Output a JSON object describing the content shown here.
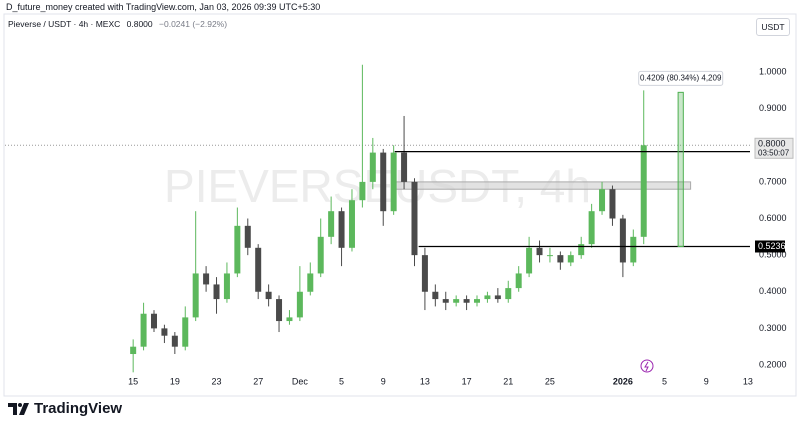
{
  "header": {
    "credit": "D_future_money created with TradingView.com, Jan 03, 2026 09:39 UTC+5:30",
    "symbol": "Pieverse / USDT · 4h · MEXC",
    "price": "0.8000",
    "change": "−0.0241 (−2.92%)",
    "currency": "USDT"
  },
  "footer": {
    "brand": "TradingView"
  },
  "chart_data": {
    "type": "candlestick",
    "watermark": "PIEVERSEUSDT, 4h",
    "x": [
      0,
      1,
      2,
      3,
      4,
      5,
      6,
      7,
      8,
      9,
      10,
      11,
      12,
      13,
      14,
      15,
      16,
      17,
      18,
      19,
      20,
      21,
      22,
      23,
      24,
      25,
      26,
      27,
      28,
      29,
      30,
      31,
      32,
      33,
      34,
      35,
      36,
      37,
      38,
      39,
      40,
      41,
      42,
      43,
      44,
      45,
      46,
      47,
      48,
      49
    ],
    "open": [
      0.23,
      0.25,
      0.34,
      0.3,
      0.28,
      0.25,
      0.33,
      0.45,
      0.42,
      0.38,
      0.45,
      0.58,
      0.52,
      0.4,
      0.38,
      0.32,
      0.33,
      0.4,
      0.45,
      0.55,
      0.62,
      0.52,
      0.65,
      0.7,
      0.78,
      0.62,
      0.78,
      0.7,
      0.5,
      0.4,
      0.38,
      0.37,
      0.38,
      0.37,
      0.38,
      0.39,
      0.38,
      0.41,
      0.45,
      0.52,
      0.5,
      0.5,
      0.48,
      0.5,
      0.53,
      0.62,
      0.68,
      0.6,
      0.48,
      0.55
    ],
    "high": [
      0.27,
      0.37,
      0.35,
      0.31,
      0.29,
      0.36,
      0.62,
      0.47,
      0.44,
      0.48,
      0.63,
      0.6,
      0.53,
      0.42,
      0.39,
      0.35,
      0.47,
      0.48,
      0.6,
      0.66,
      0.63,
      0.68,
      1.02,
      0.82,
      0.79,
      0.8,
      0.88,
      0.71,
      0.52,
      0.42,
      0.4,
      0.39,
      0.39,
      0.39,
      0.4,
      0.41,
      0.43,
      0.47,
      0.55,
      0.54,
      0.52,
      0.51,
      0.51,
      0.55,
      0.64,
      0.7,
      0.69,
      0.61,
      0.57,
      0.95
    ],
    "low": [
      0.18,
      0.24,
      0.29,
      0.26,
      0.23,
      0.24,
      0.32,
      0.4,
      0.34,
      0.37,
      0.44,
      0.5,
      0.38,
      0.36,
      0.29,
      0.31,
      0.32,
      0.39,
      0.44,
      0.53,
      0.47,
      0.51,
      0.63,
      0.68,
      0.58,
      0.61,
      0.68,
      0.47,
      0.35,
      0.36,
      0.35,
      0.36,
      0.35,
      0.36,
      0.37,
      0.37,
      0.37,
      0.4,
      0.44,
      0.48,
      0.48,
      0.46,
      0.47,
      0.49,
      0.52,
      0.61,
      0.58,
      0.44,
      0.47,
      0.53
    ],
    "close": [
      0.25,
      0.34,
      0.3,
      0.28,
      0.25,
      0.33,
      0.45,
      0.42,
      0.38,
      0.45,
      0.58,
      0.52,
      0.4,
      0.38,
      0.32,
      0.33,
      0.4,
      0.45,
      0.55,
      0.62,
      0.52,
      0.65,
      0.7,
      0.78,
      0.62,
      0.78,
      0.7,
      0.5,
      0.4,
      0.38,
      0.37,
      0.38,
      0.37,
      0.38,
      0.39,
      0.38,
      0.41,
      0.45,
      0.52,
      0.5,
      0.5,
      0.48,
      0.5,
      0.53,
      0.62,
      0.68,
      0.6,
      0.48,
      0.55,
      0.8
    ],
    "up_color": "#5cb85c",
    "down_color": "#4a4a4a",
    "xlim": [
      -12.3,
      59.2
    ],
    "ylim": [
      0.1727,
      1.1557
    ],
    "xticks": [
      {
        "value": 0,
        "label": "15"
      },
      {
        "value": 4,
        "label": "19"
      },
      {
        "value": 8,
        "label": "23"
      },
      {
        "value": 12,
        "label": "27"
      },
      {
        "value": 16,
        "label": "Dec"
      },
      {
        "value": 20,
        "label": "5"
      },
      {
        "value": 24,
        "label": "9"
      },
      {
        "value": 28,
        "label": "13"
      },
      {
        "value": 32,
        "label": "17"
      },
      {
        "value": 36,
        "label": "21"
      },
      {
        "value": 40,
        "label": "25"
      },
      {
        "value": 47,
        "label": "2026"
      },
      {
        "value": 51,
        "label": "5"
      },
      {
        "value": 55,
        "label": "9"
      },
      {
        "value": 59,
        "label": "13"
      }
    ],
    "yticks": [
      {
        "value": 1,
        "label": "1.0000"
      },
      {
        "value": 0.9,
        "label": "0.9000"
      },
      {
        "value": 0.8,
        "label": "0.8000"
      },
      {
        "value": 0.7,
        "label": "0.7000"
      },
      {
        "value": 0.6,
        "label": "0.6000"
      },
      {
        "value": 0.5,
        "label": "0.5000"
      },
      {
        "value": 0.4,
        "label": "0.4000"
      },
      {
        "value": 0.3,
        "label": "0.3000"
      },
      {
        "value": 0.2,
        "label": "0.2000"
      }
    ],
    "grid": false,
    "last_price": {
      "value": 0.8,
      "label": "0.8000",
      "countdown": "03:50:07"
    },
    "levels": [
      {
        "value": 0.7827,
        "x_start": 25.1
      },
      {
        "value": 0.5236,
        "x_start": 27.4
      }
    ],
    "zone": {
      "y": [
        0.68,
        0.7
      ],
      "x": [
        25.1,
        53.5
      ]
    },
    "measure": {
      "x": [
        52.3,
        52.8
      ],
      "y": [
        0.5236,
        0.9445
      ],
      "label": "0.4209 (80.34%) 4,209"
    }
  }
}
